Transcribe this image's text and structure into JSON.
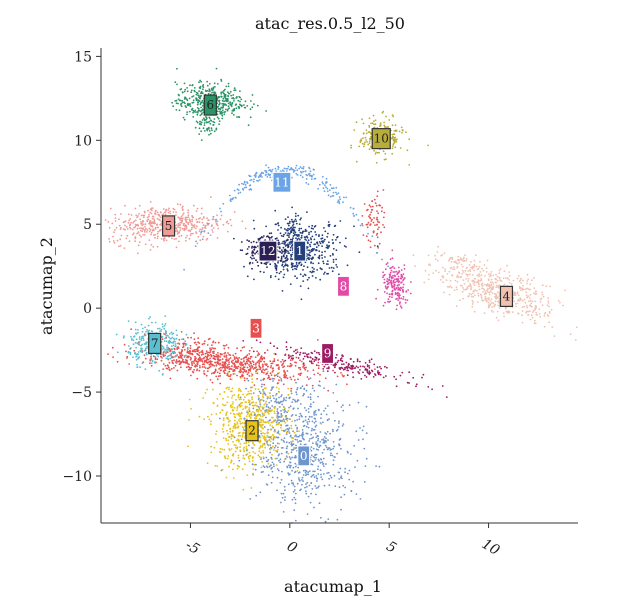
{
  "chart_data": {
    "type": "scatter",
    "title": "atac_res.0.5_l2_50",
    "xlabel": "atacumap_1",
    "ylabel": "atacumap_2",
    "xlim": [
      -9.5,
      14.5
    ],
    "ylim": [
      -12.8,
      15.5
    ],
    "x_ticks": [
      -5,
      0,
      5,
      10
    ],
    "x_tick_labels": [
      "-5",
      "0",
      "5",
      "10"
    ],
    "y_ticks": [
      -10,
      -5,
      0,
      5,
      10,
      15
    ],
    "y_tick_labels": [
      "−10",
      "−5",
      "0",
      "5",
      "10",
      "15"
    ],
    "grid": false,
    "legend": "none",
    "clusters": [
      {
        "id": "0",
        "label": "0",
        "color": "#6f95cd",
        "label_x": 0.7,
        "label_y": -8.8
      },
      {
        "id": "1",
        "label": "1",
        "color": "#243f7a",
        "label_x": 0.5,
        "label_y": 3.4
      },
      {
        "id": "2",
        "label": "2",
        "color": "#e6c31a",
        "label_x": -1.9,
        "label_y": -7.3
      },
      {
        "id": "3",
        "label": "3",
        "color": "#e8504f",
        "label_x": -1.7,
        "label_y": -1.2
      },
      {
        "id": "4",
        "label": "4",
        "color": "#f0c2b2",
        "label_x": 10.9,
        "label_y": 0.7
      },
      {
        "id": "5",
        "label": "5",
        "color": "#ef9b97",
        "label_x": -6.1,
        "label_y": 4.9
      },
      {
        "id": "6",
        "label": "6",
        "color": "#2b9466",
        "label_x": -4.0,
        "label_y": 12.1
      },
      {
        "id": "7",
        "label": "7",
        "color": "#5cbfd0",
        "label_x": -6.8,
        "label_y": -2.1
      },
      {
        "id": "8",
        "label": "8",
        "color": "#e34aa8",
        "label_x": 2.7,
        "label_y": 1.3
      },
      {
        "id": "9",
        "label": "9",
        "color": "#9c1c63",
        "label_x": 1.9,
        "label_y": -2.7
      },
      {
        "id": "10",
        "label": "10",
        "color": "#b8ad3a",
        "label_x": 4.6,
        "label_y": 10.1
      },
      {
        "id": "11",
        "label": "11",
        "color": "#6aa4e6",
        "label_x": -0.4,
        "label_y": 7.5
      },
      {
        "id": "12",
        "label": "12",
        "color": "#2c1f55",
        "label_x": -1.1,
        "label_y": 3.4
      }
    ]
  }
}
